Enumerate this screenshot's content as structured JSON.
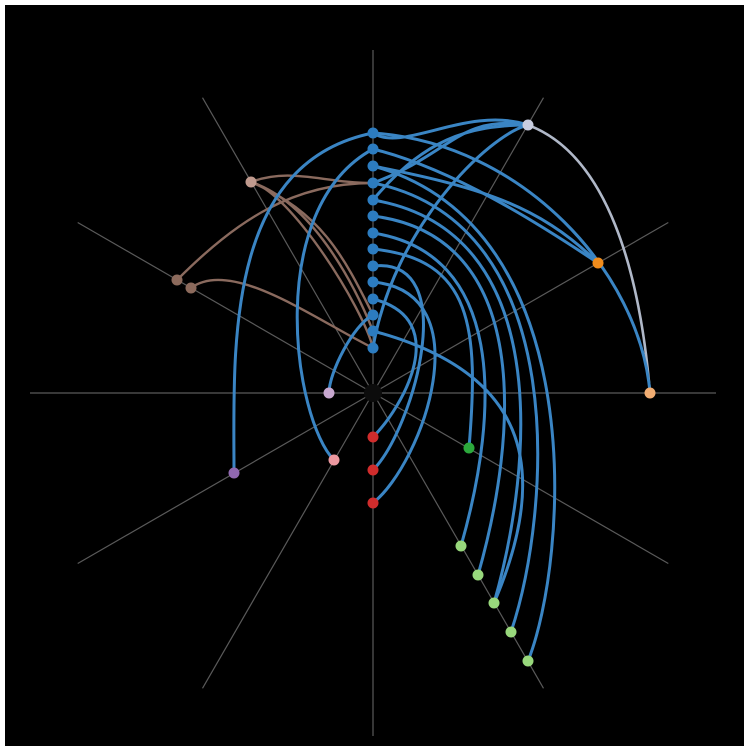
{
  "diagram": {
    "type": "hive-plot",
    "background": "#000000",
    "axis_color": "#5a5a5a",
    "link_color": "#3a85c4",
    "link_color_alt": "#8a6a5e",
    "link_color_light": "#b0b8c8",
    "axes_count": 12,
    "nodes": [
      {
        "id": "n-up-1",
        "color": "#2c7cc0"
      },
      {
        "id": "n-up-2",
        "color": "#2c7cc0"
      },
      {
        "id": "n-up-3",
        "color": "#2c7cc0"
      },
      {
        "id": "n-up-4",
        "color": "#2c7cc0"
      },
      {
        "id": "n-up-5",
        "color": "#2c7cc0"
      },
      {
        "id": "n-up-6",
        "color": "#2c7cc0"
      },
      {
        "id": "n-up-7",
        "color": "#2c7cc0"
      },
      {
        "id": "n-up-8",
        "color": "#2c7cc0"
      },
      {
        "id": "n-up-9",
        "color": "#2c7cc0"
      },
      {
        "id": "n-up-10",
        "color": "#2c7cc0"
      },
      {
        "id": "n-up-11",
        "color": "#2c7cc0"
      },
      {
        "id": "n-up-12",
        "color": "#2c7cc0"
      },
      {
        "id": "n-up-13",
        "color": "#2c7cc0"
      },
      {
        "id": "n-up-14",
        "color": "#2c7cc0"
      },
      {
        "id": "n-ne-1",
        "color": "#c8cde0"
      },
      {
        "id": "n-ene-1",
        "color": "#f08c1c"
      },
      {
        "id": "n-e-1",
        "color": "#f2ad72"
      },
      {
        "id": "n-nw-1",
        "color": "#c09a8e"
      },
      {
        "id": "n-wnw-1",
        "color": "#8c6a5c"
      },
      {
        "id": "n-wnw-2",
        "color": "#8c6a5c"
      },
      {
        "id": "n-w-1",
        "color": "#c8a8d0"
      },
      {
        "id": "n-wsw-1",
        "color": "#9068b0"
      },
      {
        "id": "n-ssw-1",
        "color": "#ec98a0"
      },
      {
        "id": "n-down-1",
        "color": "#d02c2c"
      },
      {
        "id": "n-down-2",
        "color": "#d02c2c"
      },
      {
        "id": "n-down-3",
        "color": "#d02c2c"
      },
      {
        "id": "n-ese-1",
        "color": "#2ca83c"
      },
      {
        "id": "n-sse-1",
        "color": "#98d87c"
      },
      {
        "id": "n-sse-2",
        "color": "#98d87c"
      },
      {
        "id": "n-sse-3",
        "color": "#98d87c"
      },
      {
        "id": "n-sse-4",
        "color": "#98d87c"
      },
      {
        "id": "n-sse-5",
        "color": "#98d87c"
      }
    ]
  }
}
